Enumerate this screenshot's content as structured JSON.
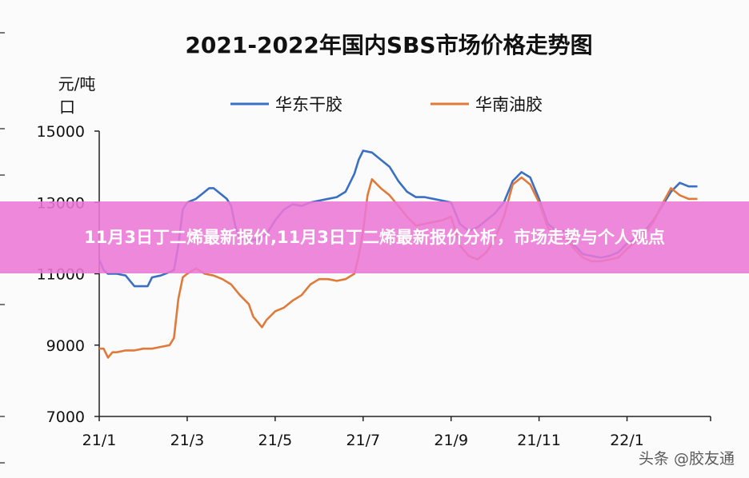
{
  "banner": {
    "headline": "11月3日丁二烯最新报价,11月3日丁二烯最新报价分析，市场走势与个人观点"
  },
  "watermark": {
    "text": "头条 @胶友通"
  },
  "chart_data": {
    "type": "line",
    "title": "2021-2022年国内SBS市场价格走势图",
    "ylabel_line1": "元/吨",
    "ylabel_line2": "口",
    "xlabel": "",
    "ylim": [
      7000,
      15000
    ],
    "yticks": [
      7000,
      9000,
      11000,
      13000,
      15000
    ],
    "x_range": [
      0,
      70
    ],
    "x_ticks": [
      {
        "x": 0,
        "label": "21/1"
      },
      {
        "x": 10,
        "label": "21/3"
      },
      {
        "x": 20,
        "label": "21/5"
      },
      {
        "x": 30,
        "label": "21/7"
      },
      {
        "x": 40,
        "label": "21/9"
      },
      {
        "x": 50,
        "label": "21/11"
      },
      {
        "x": 60,
        "label": "22/1"
      }
    ],
    "series": [
      {
        "name": "华东干胶",
        "color": "#3a6fc4",
        "points": [
          [
            0,
            11400
          ],
          [
            0.5,
            11100
          ],
          [
            1,
            11000
          ],
          [
            2,
            11000
          ],
          [
            3,
            10950
          ],
          [
            3.5,
            10800
          ],
          [
            4,
            10650
          ],
          [
            5,
            10650
          ],
          [
            5.5,
            10650
          ],
          [
            6,
            10900
          ],
          [
            7,
            10950
          ],
          [
            8,
            11050
          ],
          [
            8.5,
            11100
          ],
          [
            9,
            11800
          ],
          [
            9.5,
            12800
          ],
          [
            10,
            13000
          ],
          [
            11,
            13100
          ],
          [
            12,
            13300
          ],
          [
            12.5,
            13400
          ],
          [
            13,
            13400
          ],
          [
            13.5,
            13300
          ],
          [
            14,
            13200
          ],
          [
            14.5,
            13100
          ],
          [
            15,
            12900
          ],
          [
            15.5,
            12300
          ],
          [
            16,
            12000
          ],
          [
            17,
            11950
          ],
          [
            18,
            11950
          ],
          [
            19,
            12100
          ],
          [
            20,
            12500
          ],
          [
            21,
            12800
          ],
          [
            22,
            12950
          ],
          [
            23,
            12900
          ],
          [
            24,
            13000
          ],
          [
            25,
            13050
          ],
          [
            26,
            13100
          ],
          [
            27,
            13150
          ],
          [
            28,
            13300
          ],
          [
            29,
            13800
          ],
          [
            29.5,
            14200
          ],
          [
            30,
            14450
          ],
          [
            31,
            14400
          ],
          [
            32,
            14200
          ],
          [
            33,
            14000
          ],
          [
            34,
            13600
          ],
          [
            35,
            13300
          ],
          [
            36,
            13150
          ],
          [
            37,
            13150
          ],
          [
            38,
            13100
          ],
          [
            39,
            13050
          ],
          [
            40,
            13000
          ],
          [
            41,
            12400
          ],
          [
            42,
            12200
          ],
          [
            43,
            12300
          ],
          [
            44,
            12500
          ],
          [
            45,
            12700
          ],
          [
            46,
            13000
          ],
          [
            47,
            13600
          ],
          [
            48,
            13850
          ],
          [
            49,
            13700
          ],
          [
            50,
            13100
          ],
          [
            51,
            12400
          ],
          [
            52,
            12200
          ],
          [
            53,
            12200
          ],
          [
            54,
            11800
          ],
          [
            55,
            11550
          ],
          [
            56,
            11500
          ],
          [
            57,
            11450
          ],
          [
            58,
            11500
          ],
          [
            59,
            11600
          ],
          [
            60,
            11850
          ],
          [
            61,
            12000
          ],
          [
            62,
            12200
          ],
          [
            63,
            12500
          ],
          [
            64,
            12900
          ],
          [
            65,
            13300
          ],
          [
            66,
            13550
          ],
          [
            67,
            13450
          ],
          [
            68,
            13450
          ]
        ]
      },
      {
        "name": "华南油胶",
        "color": "#e07a3a",
        "points": [
          [
            0,
            8900
          ],
          [
            0.5,
            8900
          ],
          [
            1,
            8650
          ],
          [
            1.5,
            8800
          ],
          [
            2,
            8800
          ],
          [
            3,
            8850
          ],
          [
            4,
            8850
          ],
          [
            5,
            8900
          ],
          [
            6,
            8900
          ],
          [
            7,
            8950
          ],
          [
            8,
            9000
          ],
          [
            8.5,
            9200
          ],
          [
            9,
            10300
          ],
          [
            9.5,
            10900
          ],
          [
            10,
            11000
          ],
          [
            11,
            11150
          ],
          [
            12,
            11000
          ],
          [
            13,
            10950
          ],
          [
            14,
            10850
          ],
          [
            15,
            10700
          ],
          [
            16,
            10400
          ],
          [
            17,
            10150
          ],
          [
            17.5,
            9800
          ],
          [
            18,
            9650
          ],
          [
            18.5,
            9500
          ],
          [
            19,
            9700
          ],
          [
            20,
            9950
          ],
          [
            21,
            10050
          ],
          [
            22,
            10250
          ],
          [
            23,
            10400
          ],
          [
            24,
            10700
          ],
          [
            25,
            10850
          ],
          [
            26,
            10850
          ],
          [
            27,
            10800
          ],
          [
            28,
            10850
          ],
          [
            29,
            11000
          ],
          [
            29.5,
            11500
          ],
          [
            30,
            12200
          ],
          [
            30.5,
            13200
          ],
          [
            31,
            13650
          ],
          [
            32,
            13400
          ],
          [
            33,
            13200
          ],
          [
            34,
            12900
          ],
          [
            35,
            12600
          ],
          [
            36,
            12350
          ],
          [
            37,
            12400
          ],
          [
            38,
            12450
          ],
          [
            39,
            12500
          ],
          [
            40,
            12600
          ],
          [
            41,
            11800
          ],
          [
            42,
            11500
          ],
          [
            43,
            11400
          ],
          [
            44,
            11600
          ],
          [
            45,
            12000
          ],
          [
            46,
            12600
          ],
          [
            47,
            13500
          ],
          [
            48,
            13700
          ],
          [
            49,
            13500
          ],
          [
            50,
            13000
          ],
          [
            51,
            12300
          ],
          [
            52,
            12000
          ],
          [
            53,
            12000
          ],
          [
            54,
            11700
          ],
          [
            55,
            11450
          ],
          [
            56,
            11350
          ],
          [
            57,
            11350
          ],
          [
            58,
            11400
          ],
          [
            59,
            11450
          ],
          [
            60,
            11700
          ],
          [
            61,
            11900
          ],
          [
            62,
            12100
          ],
          [
            63,
            12450
          ],
          [
            64,
            12950
          ],
          [
            65,
            13400
          ],
          [
            66,
            13200
          ],
          [
            67,
            13100
          ],
          [
            68,
            13100
          ]
        ]
      }
    ]
  }
}
